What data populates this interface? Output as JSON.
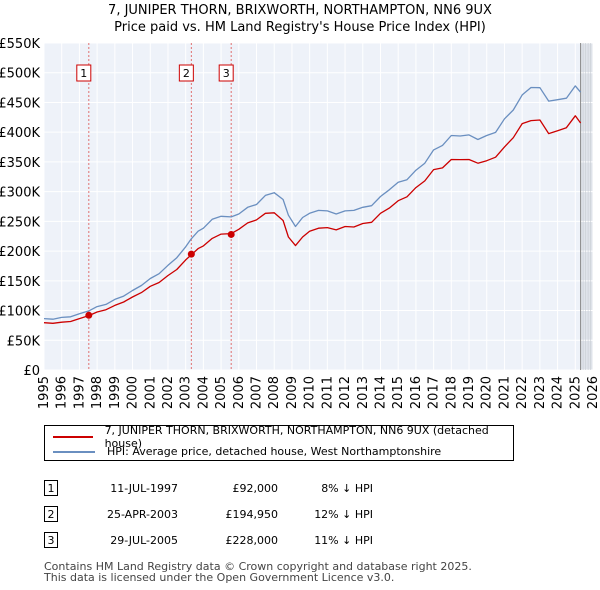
{
  "chart_data": {
    "type": "line",
    "title": "7, JUNIPER THORN, BRIXWORTH, NORTHAMPTON, NN6 9UX",
    "subtitle": "Price paid vs. HM Land Registry's House Price Index (HPI)",
    "xlim": [
      1995,
      2026
    ],
    "ylim": [
      0,
      550000
    ],
    "x_ticks": [
      "1995",
      "1996",
      "1997",
      "1998",
      "1999",
      "2000",
      "2001",
      "2002",
      "2003",
      "2004",
      "2005",
      "2006",
      "2007",
      "2008",
      "2009",
      "2010",
      "2011",
      "2012",
      "2013",
      "2014",
      "2015",
      "2016",
      "2017",
      "2018",
      "2019",
      "2020",
      "2021",
      "2022",
      "2023",
      "2024",
      "2025",
      "2026"
    ],
    "y_ticks": [
      {
        "value": 0,
        "label": "£0"
      },
      {
        "value": 50000,
        "label": "£50K"
      },
      {
        "value": 100000,
        "label": "£100K"
      },
      {
        "value": 150000,
        "label": "£150K"
      },
      {
        "value": 200000,
        "label": "£200K"
      },
      {
        "value": 250000,
        "label": "£250K"
      },
      {
        "value": 300000,
        "label": "£300K"
      },
      {
        "value": 350000,
        "label": "£350K"
      },
      {
        "value": 400000,
        "label": "£400K"
      },
      {
        "value": 450000,
        "label": "£450K"
      },
      {
        "value": 500000,
        "label": "£500K"
      },
      {
        "value": 550000,
        "label": "£550K"
      }
    ],
    "series": [
      {
        "name": "7, JUNIPER THORN, BRIXWORTH, NORTHAMPTON, NN6 9UX (detached house)",
        "color": "#cc0000",
        "x": [
          1995.0,
          1995.5,
          1996.0,
          1996.5,
          1997.0,
          1997.53,
          1998.0,
          1998.5,
          1999.0,
          1999.5,
          2000.0,
          2000.5,
          2001.0,
          2001.5,
          2002.0,
          2002.5,
          2003.0,
          2003.32,
          2003.7,
          2004.0,
          2004.5,
          2005.0,
          2005.57,
          2006.0,
          2006.5,
          2007.0,
          2007.5,
          2008.0,
          2008.5,
          2008.8,
          2009.2,
          2009.6,
          2010.0,
          2010.5,
          2011.0,
          2011.5,
          2012.0,
          2012.5,
          2013.0,
          2013.5,
          2014.0,
          2014.5,
          2015.0,
          2015.5,
          2016.0,
          2016.5,
          2017.0,
          2017.5,
          2018.0,
          2018.5,
          2019.0,
          2019.5,
          2020.0,
          2020.5,
          2021.0,
          2021.5,
          2022.0,
          2022.5,
          2023.0,
          2023.5,
          2024.0,
          2024.5,
          2025.0,
          2025.3
        ],
        "values": [
          79000,
          79000,
          80000,
          82000,
          86000,
          92000,
          97000,
          102000,
          108000,
          115000,
          122000,
          131000,
          140000,
          148000,
          158000,
          170000,
          184000,
          194950,
          203000,
          210000,
          220000,
          230000,
          228000,
          238000,
          246000,
          254000,
          262000,
          266000,
          250000,
          225000,
          208000,
          225000,
          232000,
          240000,
          238000,
          237000,
          240000,
          242000,
          245000,
          250000,
          262000,
          274000,
          283000,
          293000,
          305000,
          320000,
          335000,
          342000,
          352000,
          356000,
          352000,
          350000,
          350000,
          360000,
          373000,
          393000,
          412000,
          422000,
          418000,
          400000,
          400000,
          410000,
          425000,
          418000
        ]
      },
      {
        "name": "HPI: Average price, detached house, West Northamptonshire",
        "color": "#6a8fc0",
        "x": [
          1995.0,
          1995.5,
          1996.0,
          1996.5,
          1997.0,
          1997.53,
          1998.0,
          1998.5,
          1999.0,
          1999.5,
          2000.0,
          2000.5,
          2001.0,
          2001.5,
          2002.0,
          2002.5,
          2003.0,
          2003.32,
          2003.7,
          2004.0,
          2004.5,
          2005.0,
          2005.57,
          2006.0,
          2006.5,
          2007.0,
          2007.5,
          2008.0,
          2008.5,
          2008.8,
          2009.2,
          2009.6,
          2010.0,
          2010.5,
          2011.0,
          2011.5,
          2012.0,
          2012.5,
          2013.0,
          2013.5,
          2014.0,
          2014.5,
          2015.0,
          2015.5,
          2016.0,
          2016.5,
          2017.0,
          2017.5,
          2018.0,
          2018.5,
          2019.0,
          2019.5,
          2020.0,
          2020.5,
          2021.0,
          2021.5,
          2022.0,
          2022.5,
          2023.0,
          2023.5,
          2024.0,
          2024.5,
          2025.0,
          2025.3
        ],
        "values": [
          86000,
          86000,
          88000,
          90000,
          94000,
          100000,
          106000,
          111000,
          118000,
          125000,
          133000,
          143000,
          153000,
          163000,
          175000,
          190000,
          206000,
          222000,
          232000,
          240000,
          252000,
          260000,
          256000,
          264000,
          272000,
          280000,
          292000,
          300000,
          285000,
          262000,
          240000,
          258000,
          262000,
          270000,
          266000,
          264000,
          266000,
          270000,
          272000,
          278000,
          290000,
          305000,
          314000,
          322000,
          334000,
          350000,
          368000,
          380000,
          392000,
          396000,
          393000,
          390000,
          392000,
          402000,
          420000,
          440000,
          460000,
          478000,
          472000,
          455000,
          452000,
          460000,
          475000,
          470000
        ]
      }
    ],
    "sales": [
      {
        "label": "1",
        "x": 1997.53,
        "value": 92000
      },
      {
        "label": "2",
        "x": 2003.32,
        "value": 194950
      },
      {
        "label": "3",
        "x": 2005.57,
        "value": 228000
      }
    ],
    "shaded_from": 2025.3
  },
  "legend": {
    "items": [
      {
        "label": "7, JUNIPER THORN, BRIXWORTH, NORTHAMPTON, NN6 9UX (detached house)",
        "color": "#cc0000"
      },
      {
        "label": "HPI: Average price, detached house, West Northamptonshire",
        "color": "#6a8fc0"
      }
    ]
  },
  "transactions": [
    {
      "num": "1",
      "date": "11-JUL-1997",
      "price": "£92,000",
      "hpi": "8% ↓ HPI"
    },
    {
      "num": "2",
      "date": "25-APR-2003",
      "price": "£194,950",
      "hpi": "12% ↓ HPI"
    },
    {
      "num": "3",
      "date": "29-JUL-2005",
      "price": "£228,000",
      "hpi": "11% ↓ HPI"
    }
  ],
  "footer": {
    "line1": "Contains HM Land Registry data © Crown copyright and database right 2025.",
    "line2": "This data is licensed under the Open Government Licence v3.0."
  }
}
